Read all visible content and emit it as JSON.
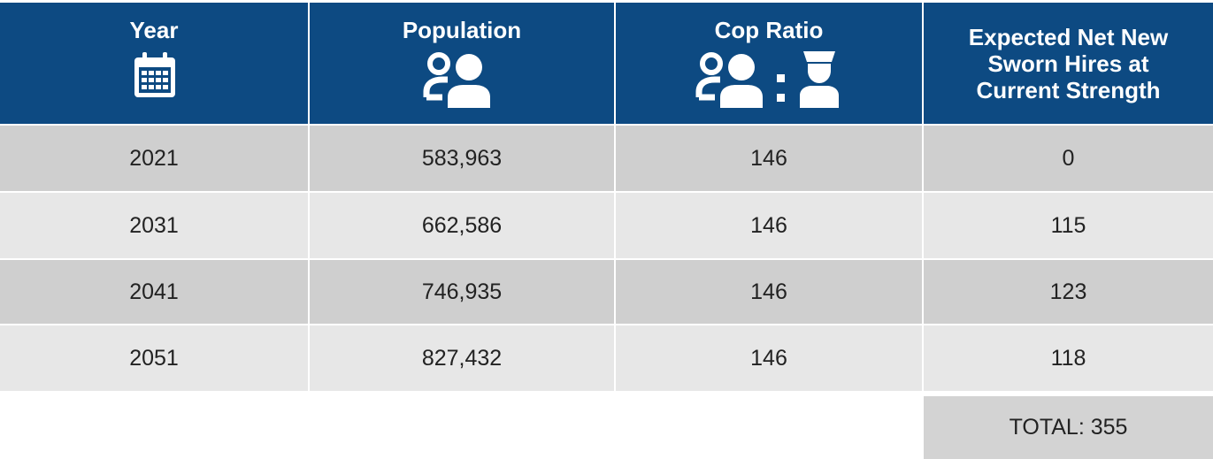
{
  "table": {
    "headers": [
      "Year",
      "Population",
      "Cop Ratio",
      "Expected Net New Sworn Hires at Current Strength"
    ],
    "rows": [
      [
        "2021",
        "583,963",
        "146",
        "0"
      ],
      [
        "2031",
        "662,586",
        "146",
        "115"
      ],
      [
        "2041",
        "746,935",
        "146",
        "123"
      ],
      [
        "2051",
        "827,432",
        "146",
        "118"
      ]
    ],
    "total": "TOTAL: 355"
  }
}
